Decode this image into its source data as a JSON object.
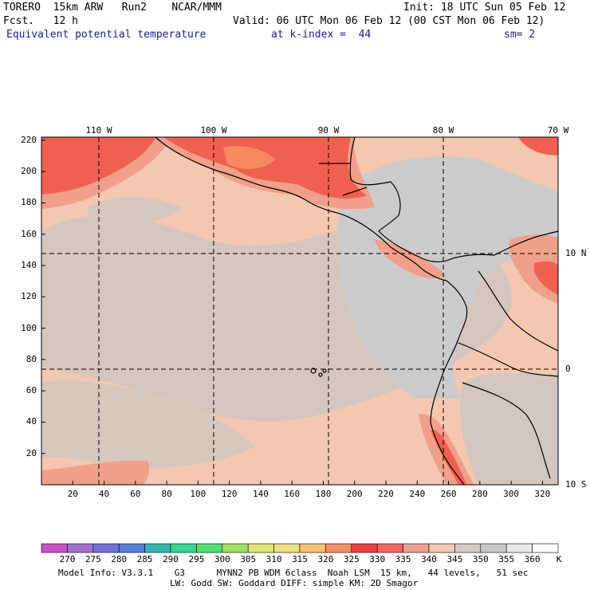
{
  "header": {
    "line1_left": "TORERO  15km ARW   Run2    NCAR/MMM",
    "line1_right": "Init: 18 UTC Sun 05 Feb 12",
    "line2_left": "Fcst.   12 h",
    "line2_right": "Valid: 06 UTC Mon 06 Feb 12 (00 CST Mon 06 Feb 12)",
    "line3_field": "Equivalent potential temperature",
    "line3_level": "at k-index =  44",
    "line3_smooth": "sm= 2"
  },
  "map": {
    "x_grid_ticks": [
      "20",
      "40",
      "60",
      "80",
      "100",
      "120",
      "140",
      "160",
      "180",
      "200",
      "220",
      "240",
      "260",
      "280",
      "300",
      "320"
    ],
    "y_grid_ticks": [
      "20",
      "40",
      "60",
      "80",
      "100",
      "120",
      "140",
      "160",
      "180",
      "200",
      "220"
    ],
    "longitude_labels": [
      "110 W",
      "100 W",
      "90 W",
      "80 W",
      "70 W"
    ],
    "latitude_labels": [
      "10 N",
      "0",
      "10 S"
    ],
    "colors": {
      "c335": "#f0a08a",
      "c340": "#f3c7b0",
      "c345": "#d8c8c0",
      "c350": "#cbcbcb",
      "c330": "#f06050",
      "c325": "#f04a40",
      "c320": "#f58a60",
      "outline": "#000000",
      "grid": "#000000"
    }
  },
  "colorbar": {
    "unit": "K",
    "labels": [
      "270",
      "275",
      "280",
      "285",
      "290",
      "295",
      "300",
      "305",
      "310",
      "315",
      "320",
      "325",
      "330",
      "335",
      "340",
      "345",
      "350",
      "355",
      "360"
    ],
    "colors": [
      "#c850c8",
      "#a070d0",
      "#7070e0",
      "#5080e0",
      "#30b8b0",
      "#30d890",
      "#50e070",
      "#a0e060",
      "#e0e870",
      "#f0e080",
      "#f8c070",
      "#f59060",
      "#f04040",
      "#f06860",
      "#f0a090",
      "#f3c8b0",
      "#d8c8c0",
      "#c8c8c8",
      "#e8e8e8",
      "#ffffff"
    ]
  },
  "footer": {
    "line1": "Model Info: V3.3.1    G3      MYNN2 PB WDM 6class  Noah LSM  15 km,   44 levels,   51 sec",
    "line2": "LW: Godd SW: Goddard DIFF: simple KM: 2D Smagor"
  }
}
